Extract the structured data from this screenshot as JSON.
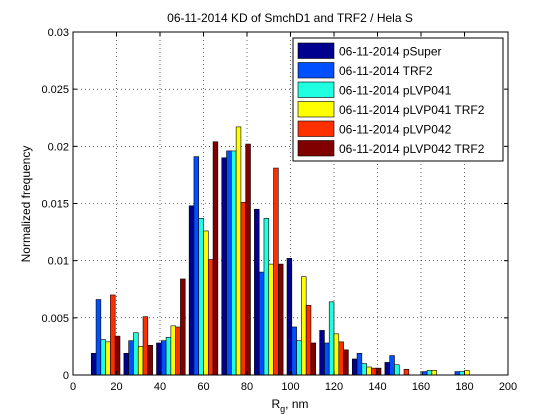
{
  "chart_data": {
    "type": "bar",
    "title": "06-11-2014 KD of SmchD1 and TRF2 / Hela S",
    "xlabel_main": "R",
    "xlabel_sub": "g",
    "xlabel_rest": ", nm",
    "ylabel": "Normalized frequency",
    "xlim": [
      0,
      200
    ],
    "ylim": [
      0,
      0.03
    ],
    "xticks": [
      0,
      20,
      40,
      60,
      80,
      100,
      120,
      140,
      160,
      180,
      200
    ],
    "yticks": [
      0,
      0.005,
      0.01,
      0.015,
      0.02,
      0.025,
      0.03
    ],
    "ytick_labels": [
      "0",
      "0.005",
      "0.01",
      "0.015",
      "0.02",
      "0.025",
      "0.03"
    ],
    "grid": true,
    "legend_position": "top-right",
    "categories": [
      15,
      30,
      45,
      60,
      75,
      90,
      105,
      120,
      135,
      150,
      165,
      180
    ],
    "series": [
      {
        "name": "06-11-2014 pSuper",
        "color": "#00008f",
        "values": [
          0.0019,
          0.0019,
          0.0028,
          0.0148,
          0.019,
          0.0145,
          0.0102,
          0.0039,
          0.0014,
          0.0011,
          0,
          0
        ]
      },
      {
        "name": "06-11-2014 TRF2",
        "color": "#0050ff",
        "values": [
          0.0066,
          0.003,
          0.003,
          0.0191,
          0.0196,
          0.009,
          0.0042,
          0.0028,
          0.0019,
          0.0017,
          0.0003,
          0.0003
        ]
      },
      {
        "name": "06-11-2014 pLVP041",
        "color": "#20ffdf",
        "values": [
          0.0031,
          0.0037,
          0.0033,
          0.0137,
          0.0196,
          0.0137,
          0.003,
          0.0064,
          0.001,
          0.0009,
          0.0004,
          0.0003
        ]
      },
      {
        "name": "06-11-2014 pLVP041 TRF2",
        "color": "#ffff00",
        "values": [
          0.0029,
          0.0025,
          0.0043,
          0.0126,
          0.0217,
          0.0097,
          0.0086,
          0.0036,
          0.0007,
          0,
          0.0004,
          0.0004
        ]
      },
      {
        "name": "06-11-2014 pLVP042",
        "color": "#ff3000",
        "values": [
          0.007,
          0.0051,
          0.0042,
          0.0101,
          0.0151,
          0.0181,
          0.0061,
          0.0029,
          0.0006,
          0.0005,
          0,
          0
        ]
      },
      {
        "name": "06-11-2014 pLVP042 TRF2",
        "color": "#800000",
        "values": [
          0.0034,
          0.0026,
          0.0084,
          0.0204,
          0.0202,
          0.0097,
          0.0028,
          0.0022,
          0.0006,
          0,
          0,
          0
        ]
      }
    ]
  }
}
